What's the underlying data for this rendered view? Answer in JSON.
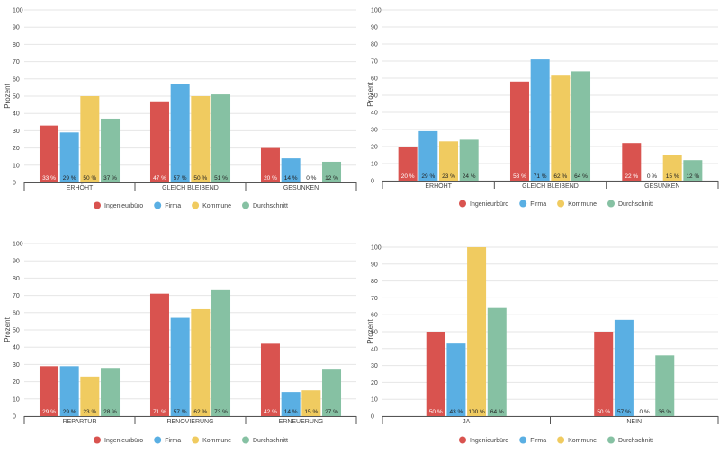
{
  "colors": {
    "series": [
      "#d9534f",
      "#5aafe3",
      "#f0cb60",
      "#86c1a3"
    ],
    "grid": "#e6e6e6",
    "axis": "#555555",
    "tick_text": "#444444",
    "inside_label_light": "#ffffff",
    "inside_label_dark": "#222222"
  },
  "chart_data": [
    {
      "type": "bar",
      "ylabel": "Prozent",
      "ylim": [
        0,
        100
      ],
      "yticks": [
        "0",
        "10",
        "20",
        "30",
        "40",
        "50",
        "60",
        "70",
        "80",
        "90",
        "100"
      ],
      "categories": [
        "ERHÖHT",
        "GLEICH BLEIBEND",
        "GESUNKEN"
      ],
      "series": [
        {
          "name": "Ingenieurbüro",
          "values": [
            33,
            47,
            20
          ],
          "labels": [
            "33 %",
            "47 %",
            "20 %"
          ]
        },
        {
          "name": "Firma",
          "values": [
            29,
            57,
            14
          ],
          "labels": [
            "29 %",
            "57 %",
            "14 %"
          ]
        },
        {
          "name": "Kommune",
          "values": [
            50,
            50,
            0
          ],
          "labels": [
            "50 %",
            "50 %",
            "0 %"
          ]
        },
        {
          "name": "Durchschnitt",
          "values": [
            37,
            51,
            12
          ],
          "labels": [
            "37 %",
            "51 %",
            "12 %"
          ]
        }
      ],
      "legend_position": "bottom"
    },
    {
      "type": "bar",
      "ylabel": "Prozent",
      "ylim": [
        0,
        100
      ],
      "yticks": [
        "0",
        "10",
        "20",
        "30",
        "40",
        "50",
        "60",
        "70",
        "80",
        "90",
        "100"
      ],
      "categories": [
        "ERHÖHT",
        "GLEICH BLEIBEND",
        "GESUNKEN"
      ],
      "series": [
        {
          "name": "Ingenieurbüro",
          "values": [
            20,
            58,
            22
          ],
          "labels": [
            "20 %",
            "58 %",
            "22 %"
          ]
        },
        {
          "name": "Firma",
          "values": [
            29,
            71,
            0
          ],
          "labels": [
            "29 %",
            "71 %",
            "0 %"
          ]
        },
        {
          "name": "Kommune",
          "values": [
            23,
            62,
            15
          ],
          "labels": [
            "23 %",
            "62 %",
            "15 %"
          ]
        },
        {
          "name": "Durchschnitt",
          "values": [
            24,
            64,
            12
          ],
          "labels": [
            "24 %",
            "64 %",
            "12 %"
          ]
        }
      ],
      "legend_position": "bottom"
    },
    {
      "type": "bar",
      "ylabel": "Prozent",
      "ylim": [
        0,
        100
      ],
      "yticks": [
        "0",
        "10",
        "20",
        "30",
        "40",
        "50",
        "60",
        "70",
        "80",
        "90",
        "100"
      ],
      "categories": [
        "REPARTUR",
        "RENOVIERUNG",
        "ERNEUERUNG"
      ],
      "series": [
        {
          "name": "Ingenieurbüro",
          "values": [
            29,
            71,
            42
          ],
          "labels": [
            "29 %",
            "71 %",
            "42 %"
          ]
        },
        {
          "name": "Firma",
          "values": [
            29,
            57,
            14
          ],
          "labels": [
            "29 %",
            "57 %",
            "14 %"
          ]
        },
        {
          "name": "Kommune",
          "values": [
            23,
            62,
            15
          ],
          "labels": [
            "23 %",
            "62 %",
            "15 %"
          ]
        },
        {
          "name": "Durchschnitt",
          "values": [
            28,
            73,
            27
          ],
          "labels": [
            "28 %",
            "73 %",
            "27 %"
          ]
        }
      ],
      "legend_position": "bottom"
    },
    {
      "type": "bar",
      "ylabel": "Prozent",
      "ylim": [
        0,
        100
      ],
      "yticks": [
        "0",
        "10",
        "20",
        "30",
        "40",
        "50",
        "60",
        "70",
        "80",
        "90",
        "100"
      ],
      "categories": [
        "JA",
        "NEIN"
      ],
      "series": [
        {
          "name": "Ingenieurbüro",
          "values": [
            50,
            50
          ],
          "labels": [
            "50 %",
            "50 %"
          ]
        },
        {
          "name": "Firma",
          "values": [
            43,
            57
          ],
          "labels": [
            "43 %",
            "57 %"
          ]
        },
        {
          "name": "Kommune",
          "values": [
            100,
            0
          ],
          "labels": [
            "100 %",
            "0 %"
          ]
        },
        {
          "name": "Durchschnitt",
          "values": [
            64,
            36
          ],
          "labels": [
            "64 %",
            "36 %"
          ]
        }
      ],
      "legend_position": "bottom"
    }
  ]
}
